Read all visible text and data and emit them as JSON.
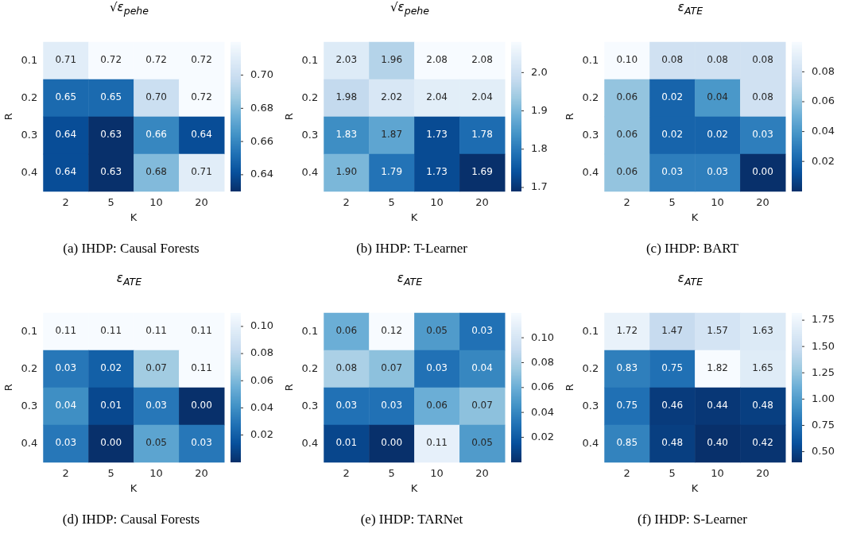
{
  "chart_data": [
    {
      "type": "heatmap",
      "title": "√ε$_{pehe}$",
      "xlabel": "K",
      "ylabel": "R",
      "categories": [
        "2",
        "5",
        "10",
        "20"
      ],
      "y_categories": [
        "0.1",
        "0.2",
        "0.3",
        "0.4"
      ],
      "cells": [
        [
          0.71,
          0.72,
          0.72,
          0.72
        ],
        [
          0.65,
          0.65,
          0.7,
          0.72
        ],
        [
          0.64,
          0.63,
          0.66,
          0.64
        ],
        [
          0.64,
          0.63,
          0.68,
          0.71
        ]
      ],
      "cell_labels": [
        [
          "0.71",
          "0.72",
          "0.72",
          "0.72"
        ],
        [
          "0.65",
          "0.65",
          "0.70",
          "0.72"
        ],
        [
          "0.64",
          "0.63",
          "0.66",
          "0.64"
        ],
        [
          "0.64",
          "0.63",
          "0.68",
          "0.71"
        ]
      ],
      "clim": [
        0.63,
        0.72
      ],
      "cticks": [
        {
          "value": 0.64,
          "label": "0.64"
        },
        {
          "value": 0.66,
          "label": "0.66"
        },
        {
          "value": 0.68,
          "label": "0.68"
        },
        {
          "value": 0.7,
          "label": "0.70"
        }
      ],
      "data_labels": true,
      "annotations": [
        "(a) IHDP: Causal Forests"
      ]
    },
    {
      "type": "heatmap",
      "title": "√ε$_{pehe}$",
      "xlabel": "K",
      "ylabel": "R",
      "categories": [
        "2",
        "5",
        "10",
        "20"
      ],
      "y_categories": [
        "0.1",
        "0.2",
        "0.3",
        "0.4"
      ],
      "cells": [
        [
          2.03,
          1.96,
          2.08,
          2.08
        ],
        [
          1.98,
          2.02,
          2.04,
          2.04
        ],
        [
          1.83,
          1.87,
          1.73,
          1.78
        ],
        [
          1.9,
          1.79,
          1.73,
          1.69
        ]
      ],
      "cell_labels": [
        [
          "2.03",
          "1.96",
          "2.08",
          "2.08"
        ],
        [
          "1.98",
          "2.02",
          "2.04",
          "2.04"
        ],
        [
          "1.83",
          "1.87",
          "1.73",
          "1.78"
        ],
        [
          "1.90",
          "1.79",
          "1.73",
          "1.69"
        ]
      ],
      "clim": [
        1.69,
        2.08
      ],
      "cticks": [
        1.7,
        1.8,
        1.9,
        {
          "value": 2.0,
          "label": "2.0"
        }
      ],
      "data_labels": true,
      "annotations": [
        "(b) IHDP: T-Learner"
      ]
    },
    {
      "type": "heatmap",
      "title": "ε$_{ATE}$",
      "xlabel": "K",
      "ylabel": "R",
      "categories": [
        "2",
        "5",
        "10",
        "20"
      ],
      "y_categories": [
        "0.1",
        "0.2",
        "0.3",
        "0.4"
      ],
      "cells": [
        [
          0.1,
          0.08,
          0.08,
          0.08
        ],
        [
          0.06,
          0.02,
          0.04,
          0.08
        ],
        [
          0.06,
          0.02,
          0.02,
          0.03
        ],
        [
          0.06,
          0.03,
          0.03,
          0.0
        ]
      ],
      "cell_labels": [
        [
          "0.10",
          "0.08",
          "0.08",
          "0.08"
        ],
        [
          "0.06",
          "0.02",
          "0.04",
          "0.08"
        ],
        [
          "0.06",
          "0.02",
          "0.02",
          "0.03"
        ],
        [
          "0.06",
          "0.03",
          "0.03",
          "0.00"
        ]
      ],
      "clim": [
        0,
        0.1
      ],
      "cticks": [
        {
          "value": 0.02,
          "label": "0.02"
        },
        {
          "value": 0.04,
          "label": "0.04"
        },
        {
          "value": 0.06,
          "label": "0.06"
        },
        {
          "value": 0.08,
          "label": "0.08"
        }
      ],
      "data_labels": true,
      "annotations": [
        "(c) IHDP: BART"
      ]
    },
    {
      "type": "heatmap",
      "title": "ε$_{ATE}$",
      "xlabel": "K",
      "ylabel": "R",
      "categories": [
        "2",
        "5",
        "10",
        "20"
      ],
      "y_categories": [
        "0.1",
        "0.2",
        "0.3",
        "0.4"
      ],
      "cells": [
        [
          0.11,
          0.11,
          0.11,
          0.11
        ],
        [
          0.03,
          0.02,
          0.07,
          0.11
        ],
        [
          0.04,
          0.01,
          0.03,
          0.0
        ],
        [
          0.03,
          0.0,
          0.05,
          0.03
        ]
      ],
      "cell_labels": [
        [
          "0.11",
          "0.11",
          "0.11",
          "0.11"
        ],
        [
          "0.03",
          "0.02",
          "0.07",
          "0.11"
        ],
        [
          "0.04",
          "0.01",
          "0.03",
          "0.00"
        ],
        [
          "0.03",
          "0.00",
          "0.05",
          "0.03"
        ]
      ],
      "clim": [
        0,
        0.11
      ],
      "cticks": [
        {
          "value": 0.02,
          "label": "0.02"
        },
        {
          "value": 0.04,
          "label": "0.04"
        },
        {
          "value": 0.06,
          "label": "0.06"
        },
        {
          "value": 0.08,
          "label": "0.08"
        },
        {
          "value": 0.1,
          "label": "0.10"
        }
      ],
      "data_labels": true,
      "annotations": [
        "(d) IHDP: Causal Forests"
      ]
    },
    {
      "type": "heatmap",
      "title": "ε$_{ATE}$",
      "xlabel": "K",
      "ylabel": "R",
      "categories": [
        "2",
        "5",
        "10",
        "20"
      ],
      "y_categories": [
        "0.1",
        "0.2",
        "0.3",
        "0.4"
      ],
      "cells": [
        [
          0.06,
          0.12,
          0.05,
          0.03
        ],
        [
          0.08,
          0.07,
          0.03,
          0.04
        ],
        [
          0.03,
          0.03,
          0.06,
          0.07
        ],
        [
          0.01,
          0.0,
          0.11,
          0.05
        ]
      ],
      "cell_labels": [
        [
          "0.06",
          "0.12",
          "0.05",
          "0.03"
        ],
        [
          "0.08",
          "0.07",
          "0.03",
          "0.04"
        ],
        [
          "0.03",
          "0.03",
          "0.06",
          "0.07"
        ],
        [
          "0.01",
          "0.00",
          "0.11",
          "0.05"
        ]
      ],
      "clim": [
        0,
        0.12
      ],
      "cticks": [
        {
          "value": 0.02,
          "label": "0.02"
        },
        {
          "value": 0.04,
          "label": "0.04"
        },
        {
          "value": 0.06,
          "label": "0.06"
        },
        {
          "value": 0.08,
          "label": "0.08"
        },
        {
          "value": 0.1,
          "label": "0.10"
        }
      ],
      "data_labels": true,
      "annotations": [
        "(e) IHDP: TARNet"
      ]
    },
    {
      "type": "heatmap",
      "title": "ε$_{ATE}$",
      "xlabel": "K",
      "ylabel": "R",
      "categories": [
        "2",
        "5",
        "10",
        "20"
      ],
      "y_categories": [
        "0.1",
        "0.2",
        "0.3",
        "0.4"
      ],
      "cells": [
        [
          1.72,
          1.47,
          1.57,
          1.63
        ],
        [
          0.83,
          0.75,
          1.82,
          1.65
        ],
        [
          0.75,
          0.46,
          0.44,
          0.48
        ],
        [
          0.85,
          0.48,
          0.4,
          0.42
        ]
      ],
      "cell_labels": [
        [
          "1.72",
          "1.47",
          "1.57",
          "1.63"
        ],
        [
          "0.83",
          "0.75",
          "1.82",
          "1.65"
        ],
        [
          "0.75",
          "0.46",
          "0.44",
          "0.48"
        ],
        [
          "0.85",
          "0.48",
          "0.40",
          "0.42"
        ]
      ],
      "clim": [
        0.4,
        1.82
      ],
      "cticks": [
        {
          "value": 0.5,
          "label": "0.50"
        },
        {
          "value": 0.75,
          "label": "0.75"
        },
        {
          "value": 1.0,
          "label": "1.00"
        },
        {
          "value": 1.25,
          "label": "1.25"
        },
        {
          "value": 1.5,
          "label": "1.50"
        },
        {
          "value": 1.75,
          "label": "1.75"
        }
      ],
      "data_labels": true,
      "annotations": [
        "(f) IHDP: S-Learner"
      ]
    }
  ]
}
